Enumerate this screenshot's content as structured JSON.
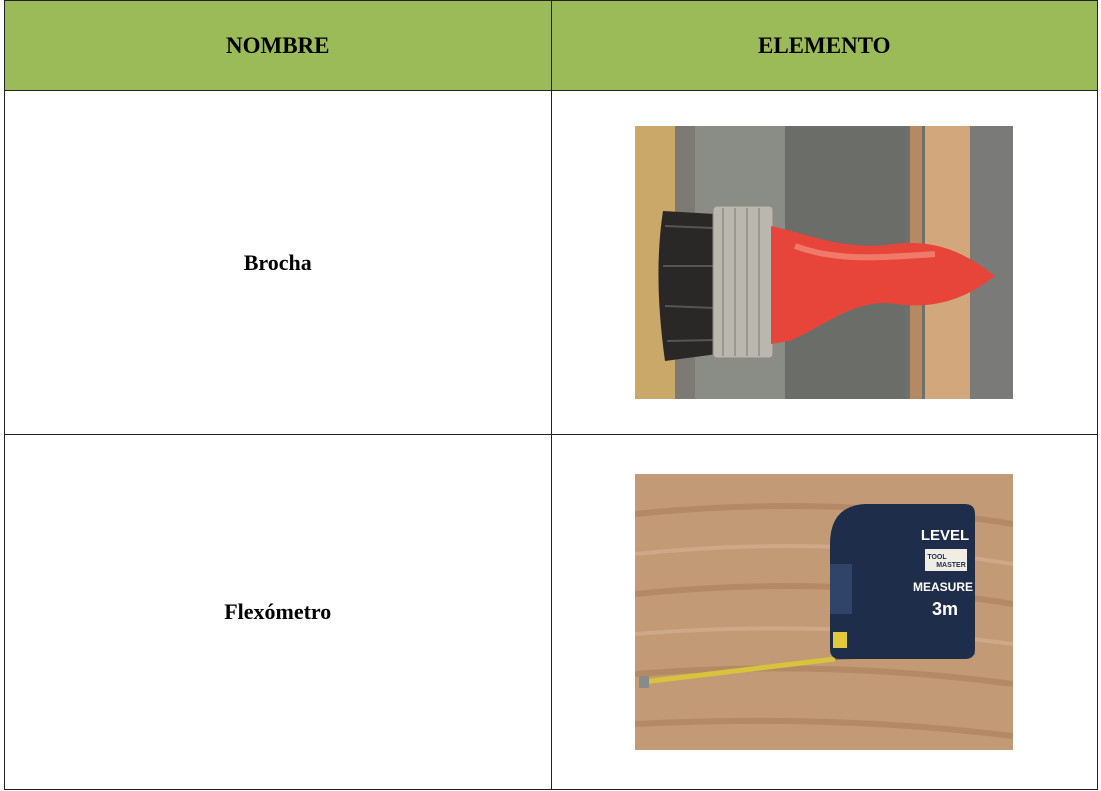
{
  "table": {
    "header": [
      "NOMBRE",
      "ELEMENTO"
    ],
    "rows": [
      {
        "name": "Brocha"
      },
      {
        "name": "Flexómetro",
        "image_text": [
          "LEVEL",
          "TOOL",
          "MASTER",
          "MEASURE",
          "3m"
        ]
      }
    ]
  }
}
